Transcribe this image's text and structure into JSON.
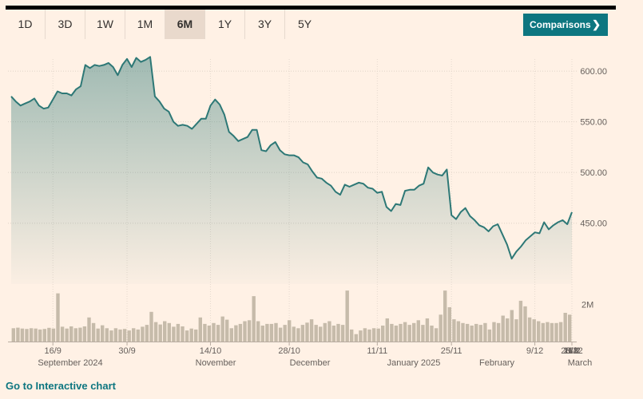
{
  "range_tabs": [
    {
      "label": "1D",
      "active": false
    },
    {
      "label": "3D",
      "active": false
    },
    {
      "label": "1W",
      "active": false
    },
    {
      "label": "1M",
      "active": false
    },
    {
      "label": "6M",
      "active": true
    },
    {
      "label": "1Y",
      "active": false
    },
    {
      "label": "3Y",
      "active": false
    },
    {
      "label": "5Y",
      "active": false
    }
  ],
  "comparisons_label": "Comparisons",
  "footer_link": "Go to Interactive chart",
  "colors": {
    "background": "#fff1e5",
    "line": "#2d7876",
    "volume": "#c6bbaa",
    "button": "#0d7680"
  },
  "chart_data": {
    "type": "line",
    "price": {
      "ylim": [
        390,
        615
      ],
      "y_ticks": [
        {
          "value": 600,
          "label": "600.00"
        },
        {
          "value": 550,
          "label": "550.00"
        },
        {
          "value": 500,
          "label": "500.00"
        },
        {
          "value": 450,
          "label": "450.00"
        }
      ],
      "values": [
        575,
        570,
        566,
        568,
        570,
        573,
        566,
        563,
        564,
        572,
        580,
        578,
        578,
        576,
        582,
        585,
        606,
        603,
        606,
        605,
        606,
        608,
        604,
        596,
        606,
        612,
        604,
        613,
        609,
        611,
        614,
        575,
        570,
        563,
        560,
        550,
        546,
        547,
        546,
        543,
        548,
        553,
        553,
        566,
        572,
        567,
        557,
        540,
        536,
        531,
        533,
        535,
        542,
        542,
        522,
        521,
        527,
        530,
        522,
        518,
        517,
        517,
        515,
        510,
        508,
        501,
        495,
        494,
        490,
        487,
        481,
        478,
        488,
        486,
        488,
        490,
        489,
        485,
        484,
        480,
        481,
        466,
        462,
        469,
        468,
        482,
        483,
        483,
        487,
        489,
        505,
        500,
        498,
        497,
        503,
        458,
        454,
        461,
        465,
        457,
        453,
        448,
        446,
        442,
        447,
        449,
        439,
        429,
        415,
        422,
        427,
        433,
        437,
        441,
        440,
        451,
        444,
        448,
        451,
        453,
        449,
        461
      ]
    },
    "volume": {
      "ylim": [
        0,
        3.1
      ],
      "y_ticks": [
        {
          "value": 2,
          "label": "2M"
        }
      ],
      "values": [
        0.72,
        0.75,
        0.7,
        0.68,
        0.72,
        0.7,
        0.65,
        0.68,
        0.74,
        0.7,
        2.6,
        0.8,
        0.7,
        0.82,
        0.72,
        0.75,
        0.82,
        1.3,
        1.0,
        0.7,
        0.88,
        0.72,
        0.6,
        0.72,
        0.65,
        0.68,
        0.6,
        0.72,
        0.65,
        0.8,
        0.9,
        1.6,
        1.05,
        0.92,
        1.1,
        1.0,
        0.8,
        0.95,
        0.82,
        0.6,
        0.7,
        0.65,
        1.3,
        0.95,
        0.86,
        1.0,
        0.9,
        1.35,
        1.18,
        0.72,
        0.88,
        0.95,
        1.1,
        1.15,
        2.45,
        1.1,
        0.86,
        0.95,
        0.95,
        1.0,
        0.75,
        0.9,
        1.15,
        0.8,
        0.72,
        0.9,
        1.02,
        1.2,
        0.9,
        0.8,
        1.0,
        1.1,
        0.86,
        0.95,
        0.9,
        2.75,
        0.65,
        0.4,
        0.6,
        0.72,
        0.65,
        0.72,
        0.7,
        0.86,
        1.25,
        0.95,
        0.86,
        0.95,
        1.05,
        0.9,
        1.0,
        1.15,
        0.9,
        1.25,
        0.86,
        0.72,
        1.45,
        2.75,
        1.85,
        1.2,
        1.1,
        1.0,
        0.95,
        0.86,
        0.95,
        0.9,
        1.0,
        0.65,
        1.05,
        1.0,
        1.4,
        1.25,
        1.7,
        1.2,
        2.2,
        1.9,
        1.3,
        1.2,
        1.1,
        1.0,
        1.05,
        1.0,
        1.0,
        1.05,
        1.55,
        1.45
      ]
    },
    "x_ticks": [
      "16/9",
      "30/9",
      "14/10",
      "28/10",
      "11/11",
      "25/11",
      "9/12",
      "23/12",
      "6/1",
      "21/1",
      "3/2",
      "18/2",
      "3/3"
    ],
    "month_labels": [
      "September 2024",
      "November",
      "December",
      "January 2025",
      "February",
      "March"
    ]
  }
}
